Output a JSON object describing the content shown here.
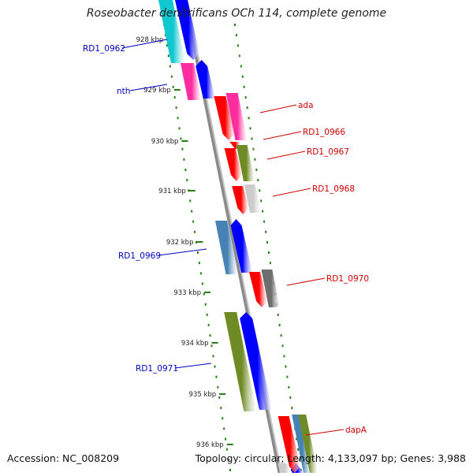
{
  "title": "Roseobacter denitrificans OCh 114, complete genome",
  "footer": {
    "accession": "Accession: NC_008209",
    "topology": "Topology: circular; Length: 4,133,097 bp; Genes: 3,988"
  },
  "colors": {
    "backbone": "#8a8a8a",
    "tick": "#2a7d1a",
    "left_label": "#0000c0",
    "right_label": "#d00000",
    "blue": "#0000ff",
    "red": "#ff0000",
    "pink": "#ff2ca0",
    "cyan": "#10c8d0",
    "olive": "#6e8b25",
    "steel": "#4682b4",
    "gray": "#cccccc",
    "dark_gray": "#6e6e6e"
  },
  "scale_labels": [
    "928 kbp",
    "929 kbp",
    "930 kbp",
    "931 kbp",
    "932 kbp",
    "933 kbp",
    "934 kbp",
    "935 kbp",
    "936 kbp"
  ],
  "left_labels": [
    "RD1_0962",
    "nth",
    "RD1_0969",
    "RD1_0971"
  ],
  "right_labels": [
    "ada",
    "RD1_0966",
    "RD1_0967",
    "RD1_0968",
    "RD1_0970",
    "dapA"
  ]
}
